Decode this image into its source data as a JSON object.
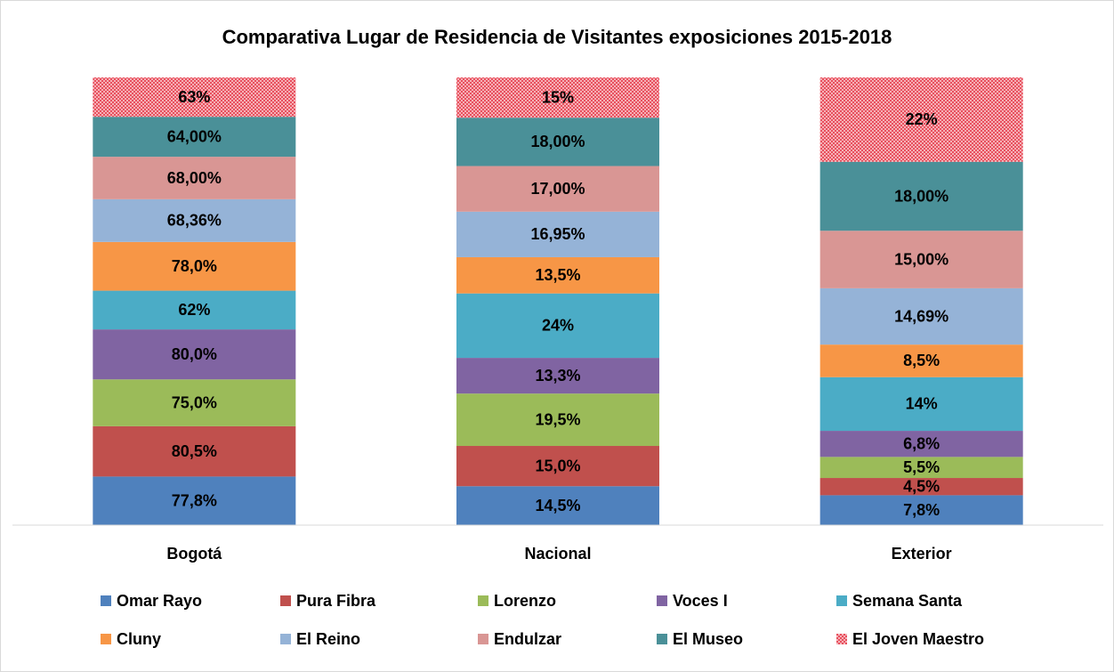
{
  "chart_data": {
    "type": "bar",
    "stacking": "percent",
    "title": "Comparativa Lugar de Residencia de Visitantes exposiciones 2015-2018",
    "categories": [
      "Bogotá",
      "Nacional",
      "Exterior"
    ],
    "series": [
      {
        "name": "Omar Rayo",
        "color": "#4f81bd",
        "values": [
          77.8,
          14.5,
          7.8
        ],
        "value_labels": [
          "77,8%",
          "14,5%",
          "7,8%"
        ]
      },
      {
        "name": "Pura Fibra",
        "color": "#c0504d",
        "values": [
          80.5,
          15.0,
          4.5
        ],
        "value_labels": [
          "80,5%",
          "15,0%",
          "4,5%"
        ]
      },
      {
        "name": "Lorenzo",
        "color": "#9bbb59",
        "values": [
          75.0,
          19.5,
          5.5
        ],
        "value_labels": [
          "75,0%",
          "19,5%",
          "5,5%"
        ]
      },
      {
        "name": "Voces I",
        "color": "#8064a2",
        "values": [
          80.0,
          13.3,
          6.8
        ],
        "value_labels": [
          "80,0%",
          "13,3%",
          "6,8%"
        ]
      },
      {
        "name": "Semana Santa",
        "color": "#4bacc6",
        "values": [
          62,
          24,
          14
        ],
        "value_labels": [
          "62%",
          "24%",
          "14%"
        ]
      },
      {
        "name": "Cluny",
        "color": "#f79646",
        "values": [
          78.0,
          13.5,
          8.5
        ],
        "value_labels": [
          "78,0%",
          "13,5%",
          "8,5%"
        ]
      },
      {
        "name": "El Reino",
        "color": "#95b3d7",
        "values": [
          68.36,
          16.95,
          14.69
        ],
        "value_labels": [
          "68,36%",
          "16,95%",
          "14,69%"
        ]
      },
      {
        "name": "Endulzar",
        "color": "#d99694",
        "values": [
          68.0,
          17.0,
          15.0
        ],
        "value_labels": [
          "68,00%",
          "17,00%",
          "15,00%"
        ]
      },
      {
        "name": "El Museo",
        "color": "#4a9098",
        "values": [
          64.0,
          18.0,
          18.0
        ],
        "value_labels": [
          "64,00%",
          "18,00%",
          "18,00%"
        ]
      },
      {
        "name": "El Joven Maestro",
        "color": "#f07c86",
        "pattern": "dots",
        "values": [
          63,
          15,
          22
        ],
        "value_labels": [
          "63%",
          "15%",
          "22%"
        ]
      }
    ],
    "legend": "bottom"
  }
}
